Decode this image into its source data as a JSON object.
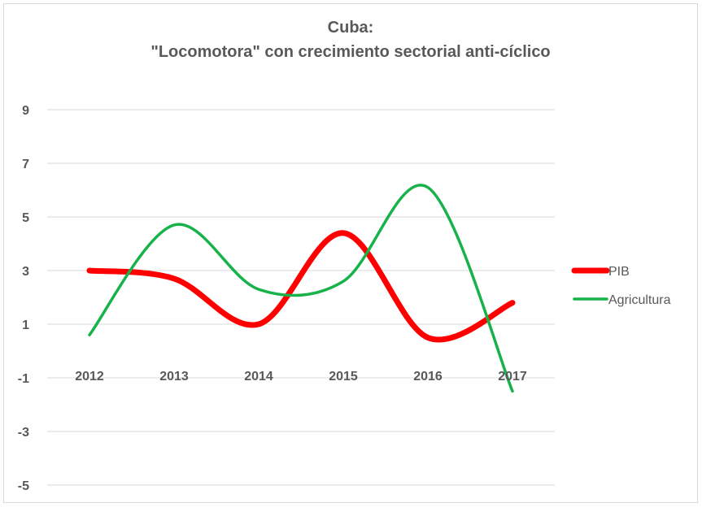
{
  "chart_data": {
    "type": "line",
    "title_lines": [
      "Cuba:",
      "\"Locomotora\" con crecimiento sectorial anti-cíclico"
    ],
    "xlabel": "",
    "ylabel": "",
    "categories": [
      "2012",
      "2013",
      "2014",
      "2015",
      "2016",
      "2017"
    ],
    "ylim": [
      -5,
      9
    ],
    "yticks": [
      -5,
      -3,
      -1,
      1,
      3,
      5,
      7,
      9
    ],
    "grid": true,
    "smooth": true,
    "legend_position": "right",
    "series": [
      {
        "name": "PIB",
        "color": "#ff0000",
        "values": [
          3.0,
          2.7,
          1.0,
          4.4,
          0.5,
          1.8
        ]
      },
      {
        "name": "Agricultura",
        "color": "#17b24a",
        "values": [
          0.6,
          4.7,
          2.3,
          2.6,
          6.1,
          -1.5
        ]
      }
    ]
  }
}
